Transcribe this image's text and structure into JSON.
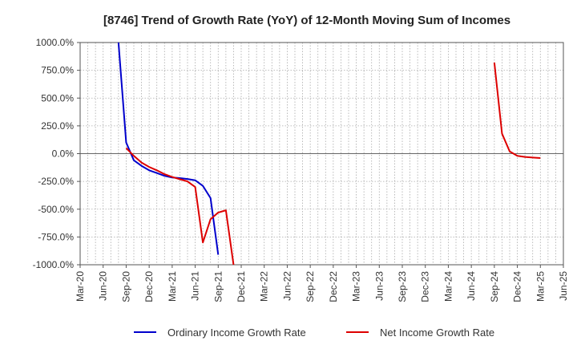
{
  "chart_data": {
    "type": "line",
    "title": "[8746]  Trend of Growth Rate (YoY) of 12-Month Moving Sum of Incomes",
    "xlabel": "",
    "ylabel": "",
    "x_start": "2020-03",
    "x_end": "2025-06",
    "x_tick_labels": [
      "Mar-20",
      "Jun-20",
      "Sep-20",
      "Dec-20",
      "Mar-21",
      "Jun-21",
      "Sep-21",
      "Dec-21",
      "Mar-22",
      "Jun-22",
      "Sep-22",
      "Dec-22",
      "Mar-23",
      "Jun-23",
      "Sep-23",
      "Dec-23",
      "Mar-24",
      "Jun-24",
      "Sep-24",
      "Dec-24",
      "Mar-25",
      "Jun-25"
    ],
    "y_tick_labels": [
      "1000.0%",
      "750.0%",
      "500.0%",
      "250.0%",
      "0.0%",
      "-250.0%",
      "-500.0%",
      "-750.0%",
      "-1000.0%"
    ],
    "ylim": [
      -1000,
      1000
    ],
    "yticks": [
      1000,
      750,
      500,
      250,
      0,
      -250,
      -500,
      -750,
      -1000
    ],
    "grid": true,
    "legend_position": "bottom",
    "series": [
      {
        "name": "Ordinary Income Growth Rate",
        "color": "#0000cc",
        "points": [
          [
            "2020-08",
            1000
          ],
          [
            "2020-09",
            100
          ],
          [
            "2020-10",
            -60
          ],
          [
            "2020-11",
            -110
          ],
          [
            "2020-12",
            -150
          ],
          [
            "2021-01",
            -175
          ],
          [
            "2021-02",
            -200
          ],
          [
            "2021-03",
            -215
          ],
          [
            "2021-04",
            -220
          ],
          [
            "2021-05",
            -228
          ],
          [
            "2021-06",
            -240
          ],
          [
            "2021-07",
            -290
          ],
          [
            "2021-08",
            -400
          ],
          [
            "2021-09",
            -910
          ]
        ]
      },
      {
        "name": "Net Income Growth Rate",
        "color": "#dd0000",
        "points": [
          [
            "2020-09",
            50
          ],
          [
            "2020-10",
            -20
          ],
          [
            "2020-11",
            -80
          ],
          [
            "2020-12",
            -120
          ],
          [
            "2021-01",
            -150
          ],
          [
            "2021-02",
            -185
          ],
          [
            "2021-03",
            -210
          ],
          [
            "2021-04",
            -230
          ],
          [
            "2021-05",
            -250
          ],
          [
            "2021-06",
            -300
          ],
          [
            "2021-07",
            -800
          ],
          [
            "2021-08",
            -590
          ],
          [
            "2021-09",
            -530
          ],
          [
            "2021-10",
            -510
          ],
          [
            "2021-11",
            -1000
          ],
          null,
          [
            "2024-09",
            820
          ],
          [
            "2024-10",
            180
          ],
          [
            "2024-11",
            20
          ],
          [
            "2024-12",
            -20
          ],
          [
            "2025-01",
            -30
          ],
          [
            "2025-02",
            -35
          ],
          [
            "2025-03",
            -40
          ]
        ]
      }
    ]
  }
}
